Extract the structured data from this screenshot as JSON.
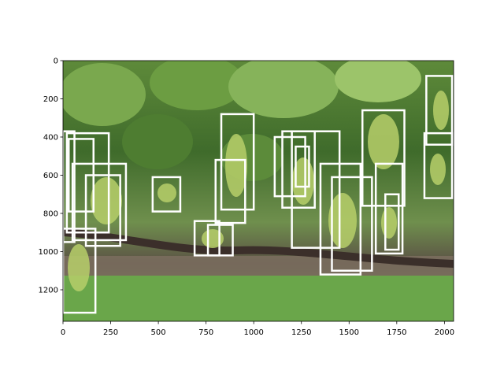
{
  "chart_data": {
    "type": "image",
    "title": "",
    "xlabel": "",
    "ylabel": "",
    "xlim": [
      0,
      2048
    ],
    "ylim": [
      1365,
      0
    ],
    "xticks": [
      0,
      250,
      500,
      750,
      1000,
      1250,
      1500,
      1750,
      2000
    ],
    "xtick_labels": [
      "0",
      "250",
      "500",
      "750",
      "1000",
      "1250",
      "1500",
      "1750",
      "2000"
    ],
    "yticks": [
      0,
      200,
      400,
      600,
      800,
      1000,
      1200
    ],
    "ytick_labels": [
      "0",
      "200",
      "400",
      "600",
      "800",
      "1000",
      "1200"
    ],
    "image_description": "vineyard grape clusters with detection boxes",
    "box_color": "#ffffff",
    "boxes": [
      {
        "x0": 0,
        "y0": 370,
        "x1": 60,
        "y1": 950
      },
      {
        "x0": 30,
        "y0": 410,
        "x1": 160,
        "y1": 790
      },
      {
        "x0": 20,
        "y0": 380,
        "x1": 240,
        "y1": 900
      },
      {
        "x0": 50,
        "y0": 540,
        "x1": 330,
        "y1": 940
      },
      {
        "x0": 120,
        "y0": 600,
        "x1": 300,
        "y1": 970
      },
      {
        "x0": 0,
        "y0": 880,
        "x1": 170,
        "y1": 1320
      },
      {
        "x0": 470,
        "y0": 610,
        "x1": 615,
        "y1": 790
      },
      {
        "x0": 690,
        "y0": 840,
        "x1": 820,
        "y1": 1020
      },
      {
        "x0": 760,
        "y0": 860,
        "x1": 890,
        "y1": 1020
      },
      {
        "x0": 830,
        "y0": 280,
        "x1": 1000,
        "y1": 780
      },
      {
        "x0": 800,
        "y0": 520,
        "x1": 955,
        "y1": 850
      },
      {
        "x0": 1110,
        "y0": 400,
        "x1": 1270,
        "y1": 710
      },
      {
        "x0": 1150,
        "y0": 370,
        "x1": 1320,
        "y1": 770
      },
      {
        "x0": 1200,
        "y0": 370,
        "x1": 1450,
        "y1": 980
      },
      {
        "x0": 1220,
        "y0": 450,
        "x1": 1290,
        "y1": 660
      },
      {
        "x0": 1350,
        "y0": 540,
        "x1": 1560,
        "y1": 1120
      },
      {
        "x0": 1410,
        "y0": 610,
        "x1": 1620,
        "y1": 1100
      },
      {
        "x0": 1570,
        "y0": 260,
        "x1": 1790,
        "y1": 760
      },
      {
        "x0": 1640,
        "y0": 540,
        "x1": 1780,
        "y1": 1010
      },
      {
        "x0": 1690,
        "y0": 700,
        "x1": 1760,
        "y1": 990
      },
      {
        "x0": 1905,
        "y0": 80,
        "x1": 2040,
        "y1": 440
      },
      {
        "x0": 1895,
        "y0": 380,
        "x1": 2040,
        "y1": 720
      }
    ]
  }
}
